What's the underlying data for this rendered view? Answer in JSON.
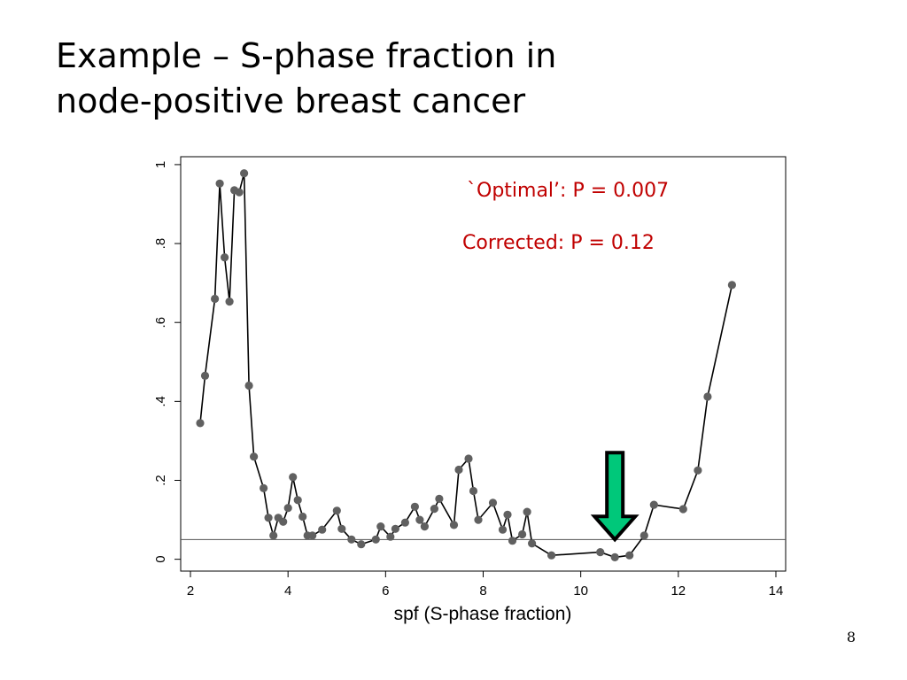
{
  "slide": {
    "title_line1": "Example – S-phase fraction in",
    "title_line2": "node-positive breast cancer",
    "page_number": "8"
  },
  "chart_data": {
    "type": "line",
    "xlabel": "spf (S-phase fraction)",
    "ylabel": "",
    "xlim": [
      1.8,
      14.2
    ],
    "ylim": [
      -0.03,
      1.02
    ],
    "xticks": [
      2,
      4,
      6,
      8,
      10,
      12,
      14
    ],
    "xtick_labels": [
      "2",
      "4",
      "6",
      "8",
      "10",
      "12",
      "14"
    ],
    "yticks": [
      0,
      0.2,
      0.4,
      0.6,
      0.8,
      1
    ],
    "ytick_labels": [
      "0",
      ".2",
      ".4",
      ".6",
      ".8",
      "1"
    ],
    "grid": false,
    "reference_line": {
      "y": 0.05
    },
    "annotations": [
      {
        "text": "`Optimal’: P = 0.007",
        "color": "#c00000"
      },
      {
        "text": "Corrected: P = 0.12",
        "color": "#c00000"
      }
    ],
    "arrow_marker": {
      "x": 10.7,
      "y_from": 0.27,
      "y_to": 0.05,
      "fill": "#00c87a"
    },
    "series": [
      {
        "color": "#000000",
        "marker_color": "#606060",
        "points": [
          [
            2.2,
            0.345
          ],
          [
            2.3,
            0.465
          ],
          [
            2.5,
            0.66
          ],
          [
            2.6,
            0.952
          ],
          [
            2.7,
            0.765
          ],
          [
            2.8,
            0.653
          ],
          [
            2.9,
            0.935
          ],
          [
            3.0,
            0.93
          ],
          [
            3.1,
            0.978
          ],
          [
            3.2,
            0.44
          ],
          [
            3.3,
            0.26
          ],
          [
            3.5,
            0.18
          ],
          [
            3.6,
            0.105
          ],
          [
            3.7,
            0.06
          ],
          [
            3.8,
            0.105
          ],
          [
            3.9,
            0.095
          ],
          [
            4.0,
            0.13
          ],
          [
            4.1,
            0.208
          ],
          [
            4.2,
            0.15
          ],
          [
            4.3,
            0.108
          ],
          [
            4.4,
            0.06
          ],
          [
            4.5,
            0.06
          ],
          [
            4.7,
            0.075
          ],
          [
            5.0,
            0.123
          ],
          [
            5.1,
            0.077
          ],
          [
            5.3,
            0.05
          ],
          [
            5.5,
            0.038
          ],
          [
            5.8,
            0.05
          ],
          [
            5.9,
            0.083
          ],
          [
            6.1,
            0.057
          ],
          [
            6.2,
            0.077
          ],
          [
            6.4,
            0.093
          ],
          [
            6.6,
            0.133
          ],
          [
            6.7,
            0.1
          ],
          [
            6.8,
            0.083
          ],
          [
            7.0,
            0.128
          ],
          [
            7.1,
            0.153
          ],
          [
            7.4,
            0.087
          ],
          [
            7.5,
            0.227
          ],
          [
            7.7,
            0.255
          ],
          [
            7.8,
            0.173
          ],
          [
            7.9,
            0.1
          ],
          [
            8.2,
            0.143
          ],
          [
            8.4,
            0.075
          ],
          [
            8.5,
            0.113
          ],
          [
            8.6,
            0.047
          ],
          [
            8.8,
            0.063
          ],
          [
            8.9,
            0.12
          ],
          [
            9.0,
            0.04
          ],
          [
            9.4,
            0.01
          ],
          [
            10.4,
            0.018
          ],
          [
            10.7,
            0.005
          ],
          [
            11.0,
            0.01
          ],
          [
            11.3,
            0.06
          ],
          [
            11.5,
            0.138
          ],
          [
            12.1,
            0.127
          ],
          [
            12.4,
            0.225
          ],
          [
            12.6,
            0.412
          ],
          [
            13.1,
            0.695
          ]
        ]
      }
    ]
  }
}
